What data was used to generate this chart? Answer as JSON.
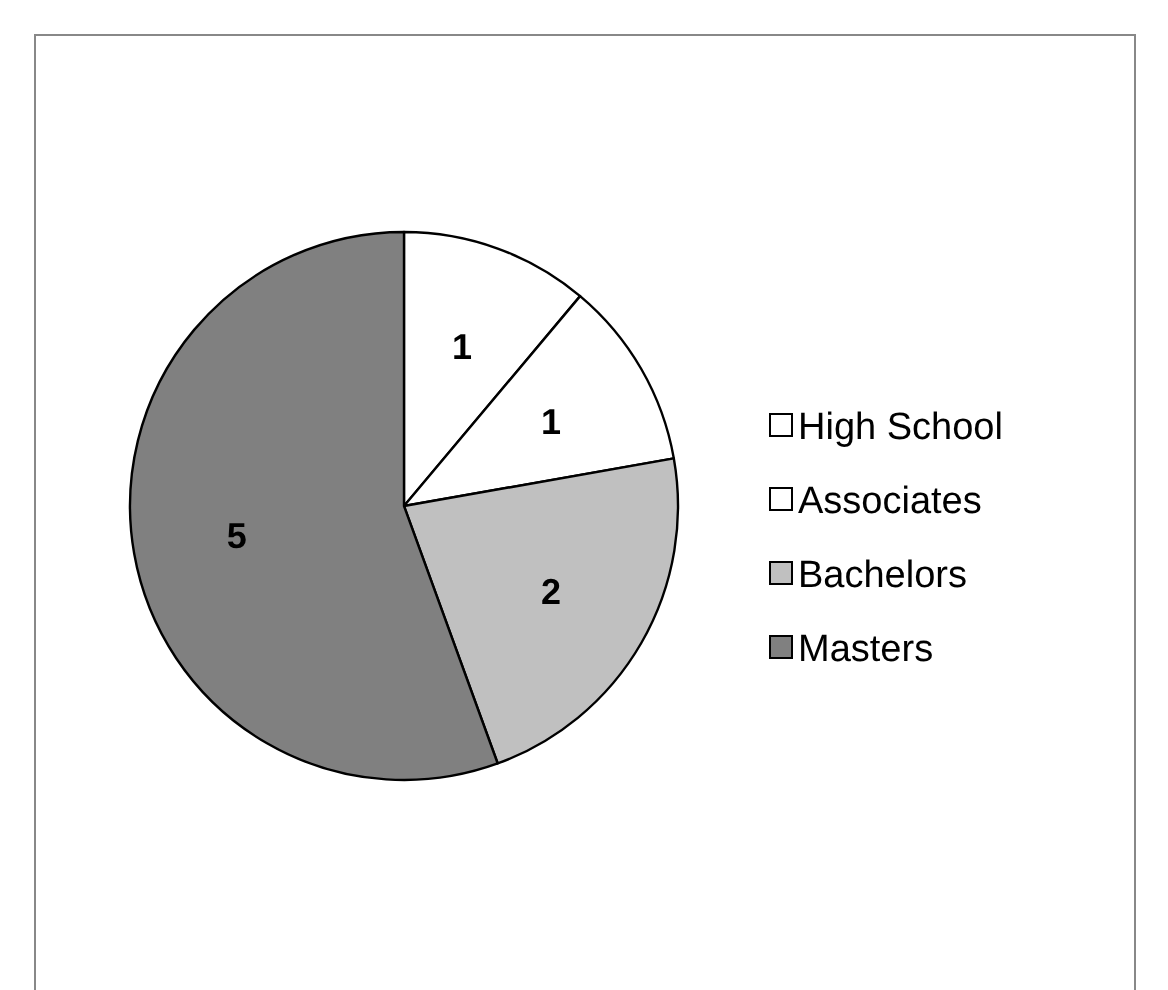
{
  "chart_data": {
    "type": "pie",
    "categories": [
      "High School",
      "Associates",
      "Bachelors",
      "Masters"
    ],
    "values": [
      1,
      1,
      2,
      5
    ],
    "colors": [
      "#ffffff",
      "#ffffff",
      "#c0c0c0",
      "#808080"
    ],
    "data_labels": true,
    "legend": "right"
  }
}
